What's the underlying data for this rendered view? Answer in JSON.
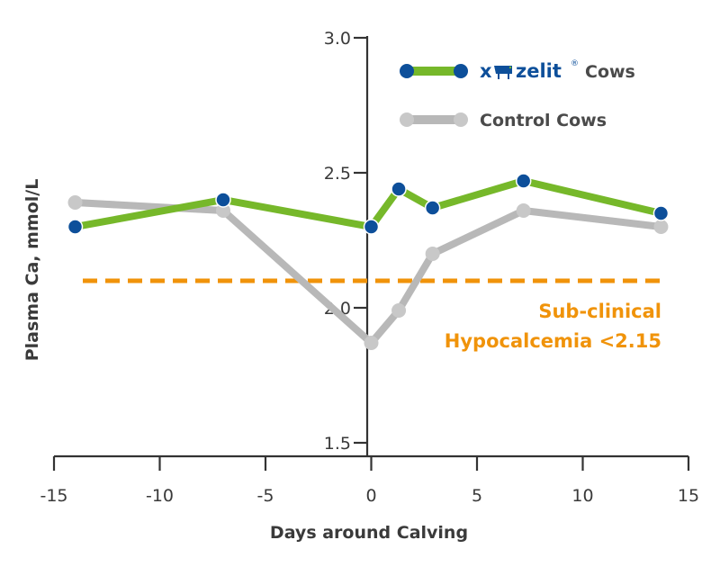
{
  "chart_data": {
    "type": "line",
    "xlabel": "Days around Calving",
    "ylabel": "Plasma Ca, mmol/L",
    "xlim": [
      -15,
      15
    ],
    "ylim": [
      1.45,
      3.0
    ],
    "x_ticks": [
      -15,
      -10,
      -5,
      0,
      5,
      10,
      15
    ],
    "x_tick_labels": [
      "-15",
      "-10",
      "-5",
      "0",
      "5",
      "10",
      "15"
    ],
    "y_ticks": [
      1.5,
      2.0,
      2.5,
      3.0
    ],
    "y_tick_labels": [
      "1.5",
      "2.0",
      "2.5",
      "3.0"
    ],
    "grid": false,
    "legend_position": "top-right",
    "series": [
      {
        "name": "Cows",
        "brand_logo": "X-Zelit",
        "line_color": "#76b82a",
        "marker_color": "#0d4f9a",
        "x": [
          -14,
          -7,
          0,
          1.3,
          2.9,
          7.2,
          13.7
        ],
        "y": [
          2.3,
          2.4,
          2.3,
          2.44,
          2.37,
          2.47,
          2.35
        ]
      },
      {
        "name": "Control Cows",
        "line_color": "#b8b8b8",
        "marker_color": "#c8c8c8",
        "x": [
          -14,
          -7,
          0,
          1.3,
          2.9,
          7.2,
          13.7
        ],
        "y": [
          2.39,
          2.36,
          1.87,
          1.99,
          2.2,
          2.36,
          2.3
        ]
      }
    ],
    "reference_line": {
      "y": 2.1,
      "color": "#f0930a",
      "style": "dashed",
      "label_lines": [
        "Sub-clinical",
        "Hypocalcemia <2.15"
      ]
    }
  }
}
